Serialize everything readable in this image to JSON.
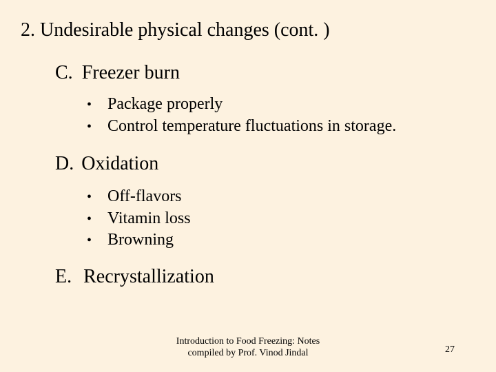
{
  "background_color": "#fdf2e0",
  "text_color": "#000000",
  "font_family": "Times New Roman",
  "title": "2. Undesirable physical changes (cont. )",
  "title_fontsize": 28,
  "section_fontsize": 28,
  "bullet_fontsize": 24,
  "footer_fontsize": 14,
  "sections": {
    "c": {
      "letter": "C.",
      "heading": "Freezer burn",
      "bullets": [
        "Package properly",
        "Control temperature fluctuations in storage."
      ]
    },
    "d": {
      "letter": "D.",
      "heading": "Oxidation",
      "bullets": [
        "Off-flavors",
        "Vitamin loss",
        "Browning"
      ]
    },
    "e": {
      "letter": "E.",
      "heading": "Recrystallization"
    }
  },
  "footer": {
    "line1": "Introduction to Food Freezing:  Notes",
    "line2": "compiled by Prof. Vinod Jindal"
  },
  "page_number": "27"
}
